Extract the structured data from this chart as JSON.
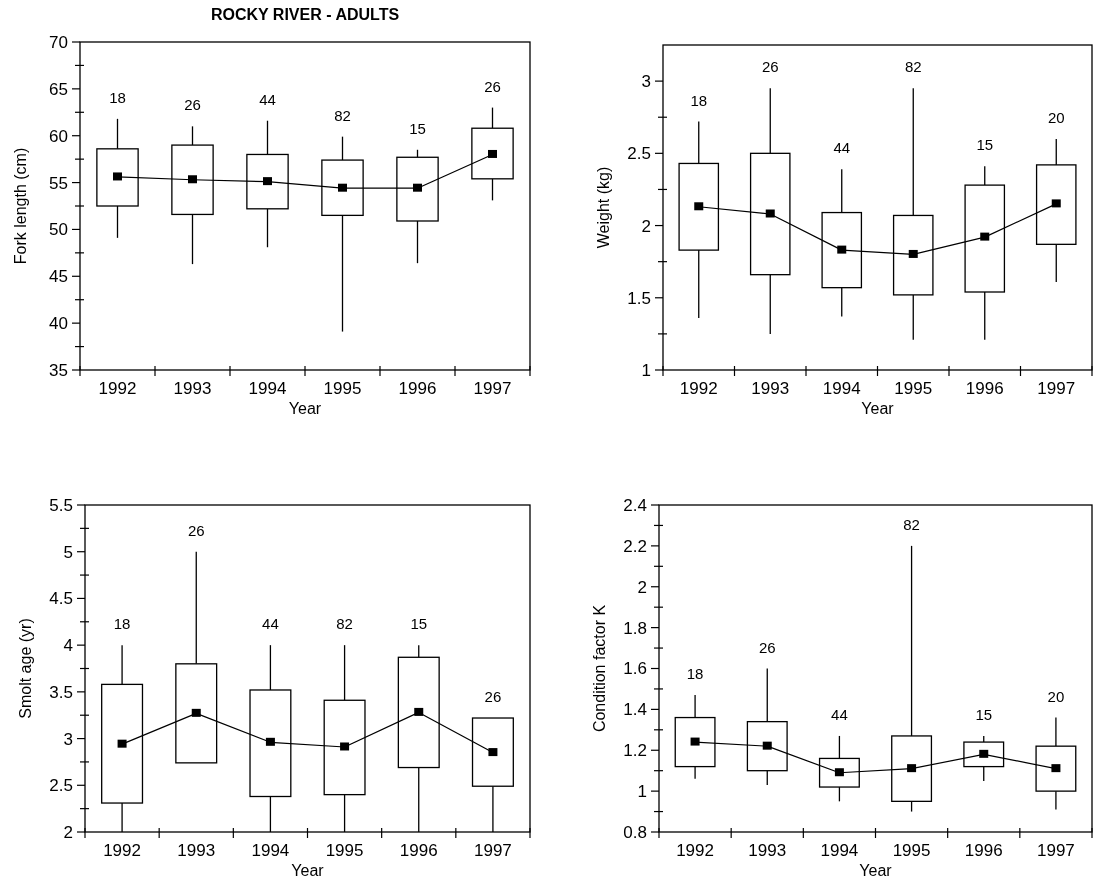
{
  "chart_data": [
    {
      "type": "box",
      "title": "ROCKY RIVER - ADULTS",
      "xlabel": "Year",
      "ylabel": "Fork length (cm)",
      "categories": [
        "1992",
        "1993",
        "1994",
        "1995",
        "1996",
        "1997"
      ],
      "ylim": [
        35,
        70
      ],
      "yticks": [
        35,
        {
          "value": 37.5,
          "label": null
        },
        40,
        {
          "value": 42.5,
          "label": null
        },
        45,
        {
          "value": 47.5,
          "label": null
        },
        50,
        {
          "value": 52.5,
          "label": null
        },
        55,
        {
          "value": 57.5,
          "label": null
        },
        60,
        {
          "value": 62.5,
          "label": null
        },
        65,
        {
          "value": 67.5,
          "label": null
        },
        70
      ],
      "marker": "square",
      "boxes": [
        {
          "low": 49.1,
          "q1": 52.5,
          "q3": 58.6,
          "high": 61.8
        },
        {
          "low": 46.3,
          "q1": 51.6,
          "q3": 59,
          "high": 61
        },
        {
          "low": 48.1,
          "q1": 52.2,
          "q3": 58,
          "high": 61.6
        },
        {
          "low": 39.1,
          "q1": 51.5,
          "q3": 57.4,
          "high": 59.9
        },
        {
          "low": 46.4,
          "q1": 50.9,
          "q3": 57.7,
          "high": 58.5
        },
        {
          "low": 53.1,
          "q1": 55.4,
          "q3": 60.8,
          "high": 63
        }
      ],
      "series": [
        {
          "type": "line",
          "color": "#000000",
          "values": [
            55.6,
            55.3,
            55.1,
            54.4,
            54.4,
            58
          ]
        }
      ],
      "annotations": [
        "18",
        "26",
        "44",
        "82",
        "15",
        "26"
      ]
    },
    {
      "type": "box",
      "xlabel": "Year",
      "ylabel": "Weight (kg)",
      "categories": [
        "1992",
        "1993",
        "1994",
        "1995",
        "1996",
        "1997"
      ],
      "ylim": [
        1,
        3.25
      ],
      "yticks": [
        1,
        {
          "value": 1.25,
          "label": null
        },
        1.5,
        {
          "value": 1.75,
          "label": null
        },
        2,
        {
          "value": 2.25,
          "label": null
        },
        2.5,
        {
          "value": 2.75,
          "label": null
        },
        3
      ],
      "marker": "square",
      "boxes": [
        {
          "low": 1.36,
          "q1": 1.83,
          "q3": 2.43,
          "high": 2.72
        },
        {
          "low": 1.25,
          "q1": 1.66,
          "q3": 2.5,
          "high": 2.95
        },
        {
          "low": 1.37,
          "q1": 1.57,
          "q3": 2.09,
          "high": 2.39
        },
        {
          "low": 1.21,
          "q1": 1.52,
          "q3": 2.07,
          "high": 2.95
        },
        {
          "low": 1.21,
          "q1": 1.54,
          "q3": 2.28,
          "high": 2.41
        },
        {
          "low": 1.61,
          "q1": 1.87,
          "q3": 2.42,
          "high": 2.6
        }
      ],
      "series": [
        {
          "type": "line",
          "color": "#000000",
          "values": [
            2.13,
            2.08,
            1.83,
            1.8,
            1.92,
            2.15
          ]
        }
      ],
      "annotations": [
        "18",
        "26",
        "44",
        "82",
        "15",
        "20"
      ]
    },
    {
      "type": "box",
      "xlabel": "Year",
      "ylabel": "Smolt age (yr)",
      "categories": [
        "1992",
        "1993",
        "1994",
        "1995",
        "1996",
        "1997"
      ],
      "ylim": [
        2,
        5.5
      ],
      "yticks": [
        2,
        {
          "value": 2.25,
          "label": null
        },
        2.5,
        {
          "value": 2.75,
          "label": null
        },
        3,
        {
          "value": 3.25,
          "label": null
        },
        3.5,
        {
          "value": 3.75,
          "label": null
        },
        4,
        {
          "value": 4.25,
          "label": null
        },
        4.5,
        {
          "value": 4.75,
          "label": null
        },
        5,
        {
          "value": 5.25,
          "label": null
        },
        5.5
      ],
      "marker": "square",
      "boxes": [
        {
          "low": 2,
          "q1": 2.31,
          "q3": 3.58,
          "high": 4
        },
        {
          "low": 2.74,
          "q1": 2.74,
          "q3": 3.8,
          "high": 5
        },
        {
          "low": 2,
          "q1": 2.38,
          "q3": 3.52,
          "high": 4
        },
        {
          "low": 2,
          "q1": 2.4,
          "q3": 3.41,
          "high": 4
        },
        {
          "low": 2,
          "q1": 2.69,
          "q3": 3.87,
          "high": 4
        },
        {
          "low": 2,
          "q1": 2.49,
          "q3": 3.22,
          "high": 3.22
        }
      ],
      "series": [
        {
          "type": "line",
          "color": "#000000",
          "values": [
            2.94,
            3.27,
            2.96,
            2.91,
            3.28,
            2.85
          ]
        }
      ],
      "annotations": [
        "18",
        "26",
        "44",
        "82",
        "15",
        "26"
      ]
    },
    {
      "type": "box",
      "xlabel": "Year",
      "ylabel": "Condition factor K",
      "categories": [
        "1992",
        "1993",
        "1994",
        "1995",
        "1996",
        "1997"
      ],
      "ylim": [
        0.8,
        2.4
      ],
      "yticks": [
        0.8,
        {
          "value": 0.9,
          "label": null
        },
        1,
        {
          "value": 1.1,
          "label": null
        },
        1.2,
        {
          "value": 1.3,
          "label": null
        },
        1.4,
        {
          "value": 1.5,
          "label": null
        },
        1.6,
        {
          "value": 1.7,
          "label": null
        },
        1.8,
        {
          "value": 1.9,
          "label": null
        },
        2,
        {
          "value": 2.1,
          "label": null
        },
        2.2,
        {
          "value": 2.3,
          "label": null
        },
        2.4
      ],
      "marker": "square",
      "boxes": [
        {
          "low": 1.06,
          "q1": 1.12,
          "q3": 1.36,
          "high": 1.47
        },
        {
          "low": 1.03,
          "q1": 1.1,
          "q3": 1.34,
          "high": 1.6
        },
        {
          "low": 0.95,
          "q1": 1.02,
          "q3": 1.16,
          "high": 1.27
        },
        {
          "low": 0.9,
          "q1": 0.95,
          "q3": 1.27,
          "high": 2.2
        },
        {
          "low": 1.05,
          "q1": 1.12,
          "q3": 1.24,
          "high": 1.27
        },
        {
          "low": 0.91,
          "q1": 1,
          "q3": 1.22,
          "high": 1.36
        }
      ],
      "series": [
        {
          "type": "line",
          "color": "#000000",
          "values": [
            1.24,
            1.22,
            1.09,
            1.11,
            1.18,
            1.11
          ]
        }
      ],
      "annotations": [
        "18",
        "26",
        "44",
        "82",
        "15",
        "20"
      ]
    }
  ]
}
